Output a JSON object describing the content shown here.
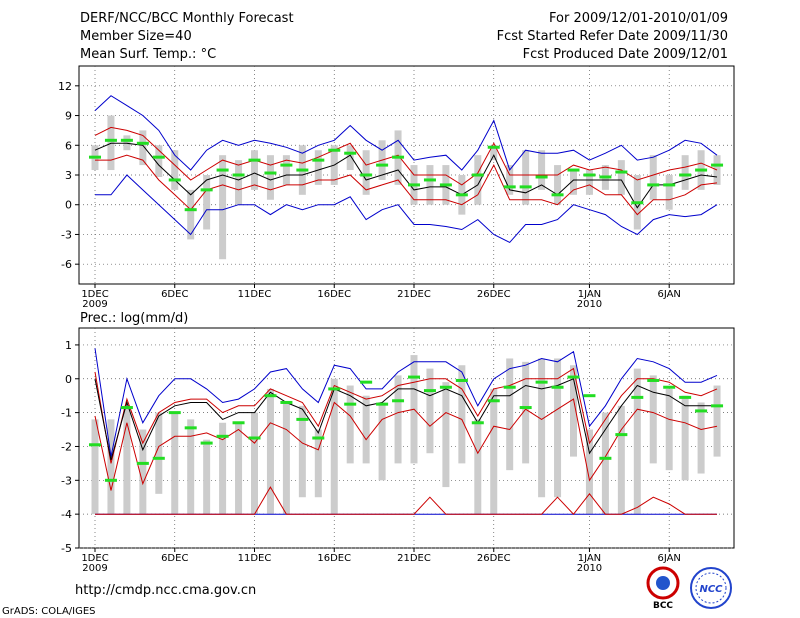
{
  "header": {
    "title": "DERF/NCC/BCC Monthly Forecast",
    "member": "Member Size=40",
    "variable": "Mean Surf. Temp.: °C",
    "period": "For 2009/12/01-2010/01/09",
    "started": "Fcst Started Refer Date 2009/11/30",
    "produced": "Fcst Produced Date 2009/12/01"
  },
  "footer": {
    "url": "http://cmdp.ncc.cma.gov.cn",
    "credit": "GrADS: COLA/IGES",
    "logo1": "BCC",
    "logo2": "NCC"
  },
  "colors": {
    "max": "#0000cc",
    "min": "#0000cc",
    "upper": "#cc0000",
    "lower": "#cc0000",
    "mean": "#000000",
    "box": "#cccccc",
    "obs": "#22dd22"
  },
  "x_ticks": [
    {
      "day": 1,
      "label": "1DEC",
      "sub": "2009"
    },
    {
      "day": 6,
      "label": "6DEC",
      "sub": ""
    },
    {
      "day": 11,
      "label": "11DEC",
      "sub": ""
    },
    {
      "day": 16,
      "label": "16DEC",
      "sub": ""
    },
    {
      "day": 21,
      "label": "21DEC",
      "sub": ""
    },
    {
      "day": 26,
      "label": "26DEC",
      "sub": ""
    },
    {
      "day": 32,
      "label": "1JAN",
      "sub": "2010"
    },
    {
      "day": 37,
      "label": "6JAN",
      "sub": ""
    }
  ],
  "chart_data": [
    {
      "type": "line",
      "name": "temperature",
      "title": "Mean Surf. Temp.: °C",
      "x": [
        1,
        2,
        3,
        4,
        5,
        6,
        7,
        8,
        9,
        10,
        11,
        12,
        13,
        14,
        15,
        16,
        17,
        18,
        19,
        20,
        21,
        22,
        23,
        24,
        25,
        26,
        27,
        28,
        29,
        30,
        31,
        32,
        33,
        34,
        35,
        36,
        37,
        38,
        39,
        40
      ],
      "ylim": [
        -8,
        14
      ],
      "yticks": [
        -6,
        -3,
        0,
        3,
        6,
        9,
        12
      ],
      "series": [
        {
          "name": "max",
          "values": [
            9.5,
            11,
            10,
            9,
            7.5,
            5,
            3.5,
            5.5,
            6.5,
            6,
            6.5,
            6.2,
            5.8,
            5.2,
            6,
            6.5,
            8,
            6.5,
            5.5,
            6.5,
            4.5,
            4.8,
            5,
            3.5,
            5.5,
            8.5,
            3.5,
            5.5,
            5.2,
            5.2,
            5.5,
            4.5,
            5.2,
            6,
            4.5,
            4.8,
            5.5,
            6.5,
            6.2,
            5
          ]
        },
        {
          "name": "upper",
          "values": [
            7,
            7.8,
            7.5,
            7,
            5.5,
            4,
            2.5,
            3.5,
            4.5,
            4,
            4.5,
            4,
            4.5,
            4.2,
            4.8,
            5.5,
            6.2,
            4,
            4.5,
            5,
            3,
            3,
            3,
            2,
            3.2,
            6.2,
            3,
            3,
            3,
            3,
            4,
            3.5,
            3.8,
            3.5,
            2.5,
            3,
            3.5,
            3.8,
            4.2,
            3.5
          ]
        },
        {
          "name": "mean",
          "values": [
            5.5,
            6.2,
            6.2,
            6,
            4,
            2.5,
            1,
            2.5,
            3,
            2.5,
            3.2,
            2.5,
            3,
            3,
            3.5,
            4,
            5,
            2.5,
            3,
            3.5,
            1.5,
            1.8,
            1.8,
            1,
            2,
            5,
            1.5,
            1.2,
            2,
            1,
            2.5,
            2.5,
            2.5,
            2.5,
            -0.3,
            2,
            2,
            2.5,
            3,
            2.8
          ]
        },
        {
          "name": "lower",
          "values": [
            4.5,
            4.5,
            5,
            4.5,
            2.5,
            1,
            -0.5,
            1.5,
            2,
            1.5,
            2,
            1.5,
            2,
            2,
            2.5,
            2.5,
            3,
            1.5,
            2,
            2.5,
            0.5,
            0.5,
            0.5,
            0,
            1,
            4,
            0.5,
            0.5,
            0.5,
            0,
            1.5,
            2,
            1,
            1,
            -1,
            0.5,
            0.5,
            1,
            2,
            2.2
          ]
        },
        {
          "name": "min",
          "values": [
            1,
            1,
            3,
            1.5,
            0,
            -1.5,
            -3,
            -0.5,
            -0.5,
            0,
            0,
            -1,
            0,
            -0.5,
            0,
            0,
            0.8,
            -1.5,
            -0.5,
            0,
            -2,
            -2,
            -2.2,
            -2.5,
            -1.5,
            -3,
            -3.8,
            -2,
            -2,
            -1.5,
            0,
            -0.5,
            -1,
            -2.2,
            -3,
            -1.5,
            -1,
            -1.2,
            -1,
            0
          ]
        }
      ],
      "boxes": {
        "low": [
          3.5,
          3.5,
          5.5,
          4,
          2.8,
          1.5,
          -3.5,
          -2.5,
          -5.5,
          0,
          1.5,
          0.5,
          2,
          1,
          2,
          2,
          3.5,
          1,
          2.5,
          2,
          0,
          0,
          0,
          -1,
          0,
          4.5,
          1,
          0,
          1.5,
          0,
          1,
          1,
          1.5,
          1,
          -2.5,
          0.5,
          -0.5,
          1.5,
          1.5,
          2
        ],
        "high": [
          6,
          9,
          7,
          7.5,
          6,
          5.5,
          1.5,
          3,
          5,
          4.5,
          5.5,
          5,
          5,
          6,
          5.5,
          6,
          6,
          5.5,
          6.5,
          7.5,
          4,
          4,
          4,
          3,
          5,
          6,
          4,
          5.5,
          5.5,
          4,
          3.5,
          3.5,
          4,
          4.5,
          3,
          5,
          3,
          5,
          5.5,
          5
        ]
      },
      "observed": [
        4.8,
        6.5,
        6.5,
        6.2,
        4.8,
        2.5,
        -0.5,
        1.5,
        3.5,
        3,
        4.5,
        3.2,
        4,
        3.5,
        4.5,
        5.5,
        5.2,
        3,
        4,
        4.8,
        2,
        2.5,
        2,
        1,
        3,
        5.8,
        1.8,
        1.8,
        2.8,
        1,
        3.5,
        3,
        2.8,
        3.3,
        0.2,
        2,
        2,
        3,
        3.5,
        4
      ]
    },
    {
      "type": "line",
      "name": "precipitation",
      "title": "Prec.: log(mm/d)",
      "x": [
        1,
        2,
        3,
        4,
        5,
        6,
        7,
        8,
        9,
        10,
        11,
        12,
        13,
        14,
        15,
        16,
        17,
        18,
        19,
        20,
        21,
        22,
        23,
        24,
        25,
        26,
        27,
        28,
        29,
        30,
        31,
        32,
        33,
        34,
        35,
        36,
        37,
        38,
        39,
        40
      ],
      "ylim": [
        -5,
        1.5
      ],
      "yticks": [
        -5,
        -4,
        -3,
        -2,
        -1,
        0,
        1
      ],
      "series": [
        {
          "name": "max",
          "values": [
            0.9,
            -2.3,
            0,
            -1.3,
            -0.5,
            0,
            0,
            -0.3,
            -0.7,
            -0.6,
            -0.3,
            0.2,
            0.3,
            -0.3,
            -0.7,
            0.4,
            0.3,
            -0.3,
            -0.3,
            0.2,
            0.5,
            0.5,
            0.5,
            0.2,
            -0.8,
            0,
            0.3,
            0.4,
            0.6,
            0.5,
            0.8,
            -1.4,
            -0.8,
            0,
            0.6,
            0.5,
            0.3,
            -0.1,
            -0.1,
            0.1
          ]
        },
        {
          "name": "upper",
          "values": [
            0.2,
            -2.5,
            -0.6,
            -1.9,
            -1,
            -0.7,
            -0.6,
            -0.6,
            -1,
            -0.8,
            -0.8,
            -0.3,
            -0.5,
            -0.7,
            -1.4,
            -0.2,
            -0.4,
            -0.6,
            -0.5,
            -0.2,
            -0.1,
            0,
            0,
            -0.3,
            -1.1,
            -0.3,
            -0.2,
            0,
            0,
            0,
            0.3,
            -1.9,
            -1.2,
            -0.5,
            0,
            0,
            -0.1,
            -0.4,
            -0.5,
            -0.3
          ]
        },
        {
          "name": "mean",
          "values": [
            0,
            -2.4,
            -0.7,
            -2.1,
            -1.1,
            -0.8,
            -0.7,
            -0.7,
            -1.2,
            -1,
            -1,
            -0.4,
            -0.7,
            -0.9,
            -1.6,
            -0.3,
            -0.5,
            -0.8,
            -0.7,
            -0.3,
            -0.3,
            -0.5,
            -0.3,
            -0.5,
            -1.3,
            -0.5,
            -0.5,
            -0.2,
            -0.3,
            -0.2,
            0,
            -2.2,
            -1.5,
            -0.8,
            -0.2,
            -0.4,
            -0.5,
            -0.8,
            -0.8,
            -0.8
          ]
        },
        {
          "name": "lower",
          "values": [
            -1.1,
            -3.3,
            -1.3,
            -3.1,
            -2,
            -1.7,
            -1.7,
            -1.6,
            -1.8,
            -1.5,
            -1.9,
            -1.3,
            -1.5,
            -1.9,
            -2.1,
            -0.7,
            -1.1,
            -1.8,
            -1.2,
            -1,
            -0.9,
            -1.4,
            -1,
            -1.2,
            -2.2,
            -1.4,
            -1.5,
            -0.9,
            -1.2,
            -0.9,
            -0.6,
            -3,
            -2.3,
            -1.5,
            -0.9,
            -1,
            -1.2,
            -1.3,
            -1.5,
            -1.4
          ]
        },
        {
          "name": "min",
          "values": [
            -4,
            -4,
            -4,
            -4,
            -4,
            -4,
            -4,
            -4,
            -4,
            -4,
            -4,
            -4,
            -4,
            -4,
            -4,
            -4,
            -4,
            -4,
            -4,
            -4,
            -4,
            -4,
            -4,
            -4,
            -4,
            -4,
            -4,
            -4,
            -4,
            -4,
            -4,
            -4,
            -4,
            -4,
            -4,
            -4,
            -4,
            -4,
            -4,
            -4
          ]
        },
        {
          "name": "min_red",
          "values": [
            -4,
            -4,
            -4,
            -4,
            -4,
            -4,
            -4,
            -4,
            -4,
            -4,
            -4,
            -3.2,
            -4,
            -4,
            -4,
            -4,
            -4,
            -4,
            -4,
            -4,
            -4,
            -3.5,
            -4,
            -4,
            -4,
            -4,
            -4,
            -4,
            -4,
            -3.5,
            -4,
            -3.4,
            -4,
            -4,
            -3.8,
            -3.5,
            -3.7,
            -4,
            -4,
            -4
          ]
        }
      ],
      "boxes": {
        "low": [
          -4,
          -4,
          -4,
          -4,
          -3.4,
          -4,
          -4,
          -4,
          -4,
          -4,
          -4,
          -4,
          -4,
          -3.5,
          -3.5,
          -4,
          -2.5,
          -2.5,
          -3,
          -2.5,
          -2.5,
          -2.2,
          -3.2,
          -2.5,
          -4,
          -4,
          -2.7,
          -2.5,
          -3.5,
          -3.5,
          -2.3,
          -4,
          -4,
          -4,
          -4,
          -2.5,
          -2.7,
          -3,
          -2.8,
          -2.3
        ]
      },
      "boxes_high": [
        -1.2,
        -1.2,
        -0.8,
        -1.5,
        -1,
        -1,
        -1.2,
        -1.8,
        -1.3,
        -1.3,
        -1,
        -0.3,
        -0.7,
        -0.8,
        -1.5,
        0,
        -0.2,
        -0.5,
        -0.7,
        0.1,
        0.7,
        0.3,
        -0.1,
        0.4,
        -1.2,
        -0.3,
        0.6,
        0.5,
        0.6,
        0.6,
        0.4,
        -1.5,
        -1,
        -0.8,
        0.3,
        0.1,
        -0.3,
        -0.5,
        -0.7,
        -0.2
      ],
      "observed": [
        -1.95,
        -3,
        -0.85,
        -2.5,
        -2.35,
        -1,
        -1.45,
        -1.9,
        -1.7,
        -1.3,
        -1.75,
        -0.5,
        -0.7,
        -1.2,
        -1.75,
        -0.3,
        -0.75,
        -0.1,
        -0.75,
        -0.65,
        0.05,
        -0.35,
        -0.25,
        -0.05,
        -1.3,
        -0.65,
        -0.25,
        -0.85,
        -0.1,
        -0.25,
        0.05,
        -0.5,
        -2.35,
        -1.65,
        -0.55,
        -0.05,
        -0.25,
        -0.55,
        -0.95,
        -0.8
      ]
    }
  ]
}
